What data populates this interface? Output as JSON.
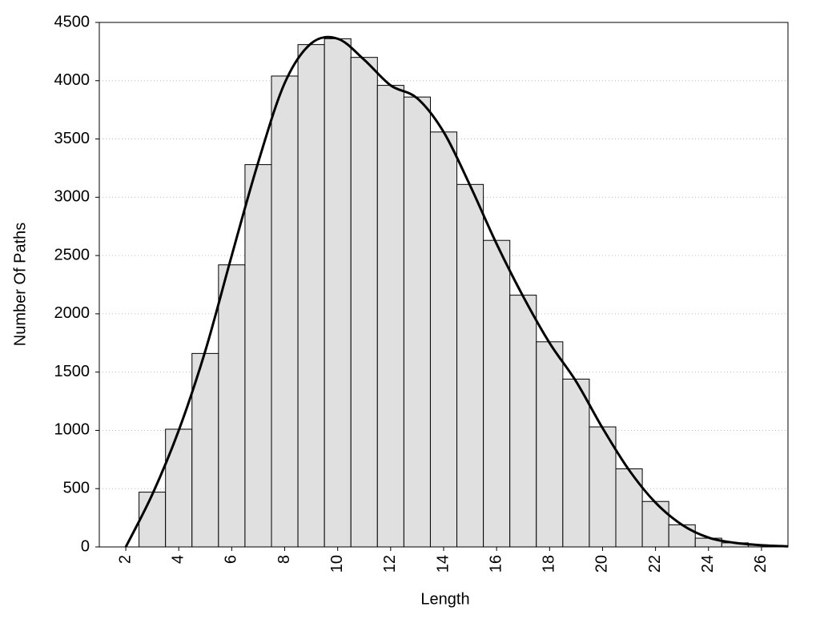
{
  "chart_data": {
    "type": "histogram",
    "x_label": "Length",
    "y_label": "Number Of Paths",
    "bins": [
      2.5,
      3.5,
      4.5,
      5.5,
      6.5,
      7.5,
      8.5,
      9.5,
      10.5,
      11.5,
      12.5,
      13.5,
      14.5,
      15.5,
      16.5,
      17.5,
      18.5,
      19.5,
      20.5,
      21.5,
      22.5,
      23.5,
      24.5,
      25.5,
      26.5
    ],
    "values": [
      470,
      1010,
      1660,
      2420,
      3280,
      4040,
      4310,
      4360,
      4200,
      3960,
      3860,
      3560,
      3110,
      2630,
      2160,
      1760,
      1440,
      1030,
      670,
      390,
      190,
      75,
      35,
      15
    ],
    "color": "#e0e0e0",
    "overlay": {
      "type": "line",
      "color": "#000000",
      "x": [
        2,
        3,
        4,
        5,
        6,
        7,
        8,
        9,
        10,
        11,
        12,
        13,
        14,
        15,
        16,
        17,
        18,
        19,
        20,
        21,
        22,
        23,
        24,
        25,
        26,
        27
      ],
      "values": [
        0,
        450,
        1000,
        1680,
        2500,
        3300,
        3980,
        4320,
        4360,
        4180,
        3960,
        3850,
        3560,
        3100,
        2600,
        2150,
        1750,
        1420,
        1020,
        660,
        380,
        190,
        80,
        35,
        15,
        5
      ]
    },
    "xlim": [
      1,
      27
    ],
    "xticks": [
      2,
      4,
      6,
      8,
      10,
      12,
      14,
      16,
      18,
      20,
      22,
      24,
      26
    ],
    "ylim": [
      0,
      4500
    ],
    "yticks": [
      0,
      500,
      1000,
      1500,
      2000,
      2500,
      3000,
      3500,
      4000,
      4500
    ],
    "grid": true
  }
}
